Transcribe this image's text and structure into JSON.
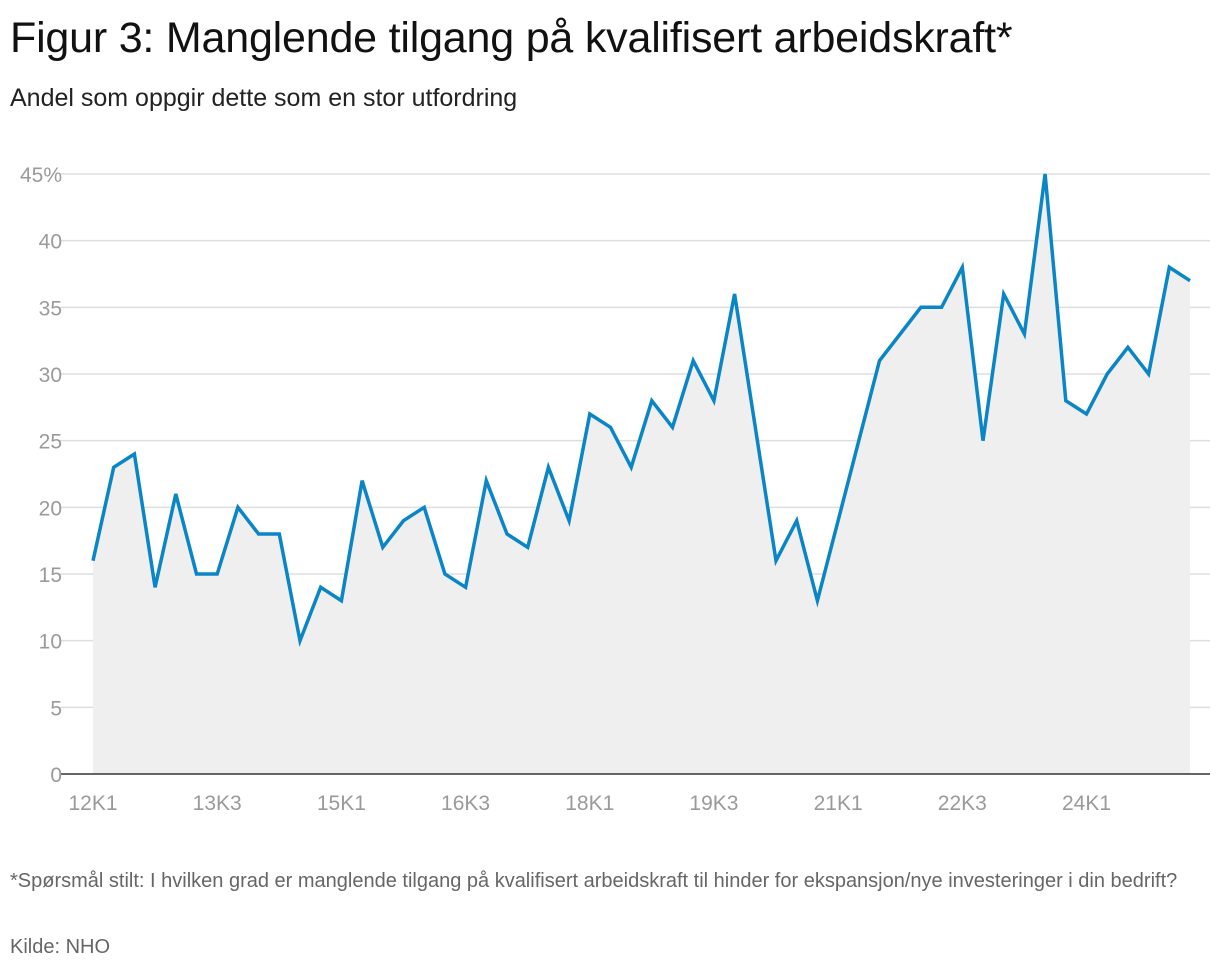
{
  "title": "Figur 3: Manglende tilgang på kvalifisert arbeidskraft*",
  "subtitle": "Andel som oppgir dette som en stor utfordring",
  "footnote": "*Spørsmål stilt: I hvilken grad er manglende tilgang på kvalifisert arbeidskraft til hinder for ekspansjon/nye investeringer i din bedrift?",
  "source": "Kilde: NHO",
  "chart_data": {
    "type": "area",
    "x": [
      "12K1",
      "12K2",
      "12K3",
      "12K4",
      "13K1",
      "13K2",
      "13K3",
      "13K4",
      "14K1",
      "14K2",
      "14K3",
      "14K4",
      "15K1",
      "15K2",
      "15K3",
      "15K4",
      "16K1",
      "16K2",
      "16K3",
      "16K4",
      "17K1",
      "17K2",
      "17K3",
      "17K4",
      "18K1",
      "18K2",
      "18K3",
      "18K4",
      "19K1",
      "19K2",
      "19K3",
      "19K4",
      "20K2",
      "20K3",
      "20K4",
      "21K1",
      "21K3",
      "21K4",
      "22K1",
      "22K2",
      "22K3",
      "22K4",
      "23K1",
      "23K2",
      "23K3",
      "23K4",
      "24K1",
      "24K2",
      "24K3",
      "24K4",
      "25K1",
      "25K2"
    ],
    "values": [
      16,
      23,
      24,
      14,
      21,
      15,
      15,
      20,
      18,
      18,
      10,
      14,
      13,
      22,
      17,
      19,
      20,
      15,
      14,
      22,
      18,
      17,
      23,
      19,
      27,
      26,
      23,
      28,
      26,
      31,
      28,
      36,
      16,
      19,
      13,
      19,
      31,
      33,
      35,
      35,
      38,
      25,
      36,
      33,
      45,
      28,
      27,
      30,
      32,
      30,
      38,
      37
    ],
    "x_positions": [
      0,
      1,
      2,
      3,
      4,
      5,
      6,
      7,
      8,
      9,
      10,
      11,
      12,
      13,
      14,
      15,
      16,
      17,
      18,
      19,
      20,
      21,
      22,
      23,
      24,
      25,
      26,
      27,
      28,
      29,
      30,
      31,
      33,
      34,
      35,
      36,
      38,
      39,
      40,
      41,
      42,
      43,
      44,
      45,
      46,
      47,
      48,
      49,
      50,
      51,
      52,
      53
    ],
    "xticks": [
      "12K1",
      "13K3",
      "15K1",
      "16K3",
      "18K1",
      "19K3",
      "21K1",
      "22K3",
      "24K1"
    ],
    "yticks": [
      "45%",
      "40",
      "35",
      "30",
      "25",
      "20",
      "15",
      "10",
      "5",
      "0"
    ],
    "ylim": [
      0,
      45
    ],
    "grid": true,
    "colors": {
      "line": "#0a85c6",
      "area": "#efefef",
      "grid": "#dedede",
      "axis": "#333333"
    }
  }
}
